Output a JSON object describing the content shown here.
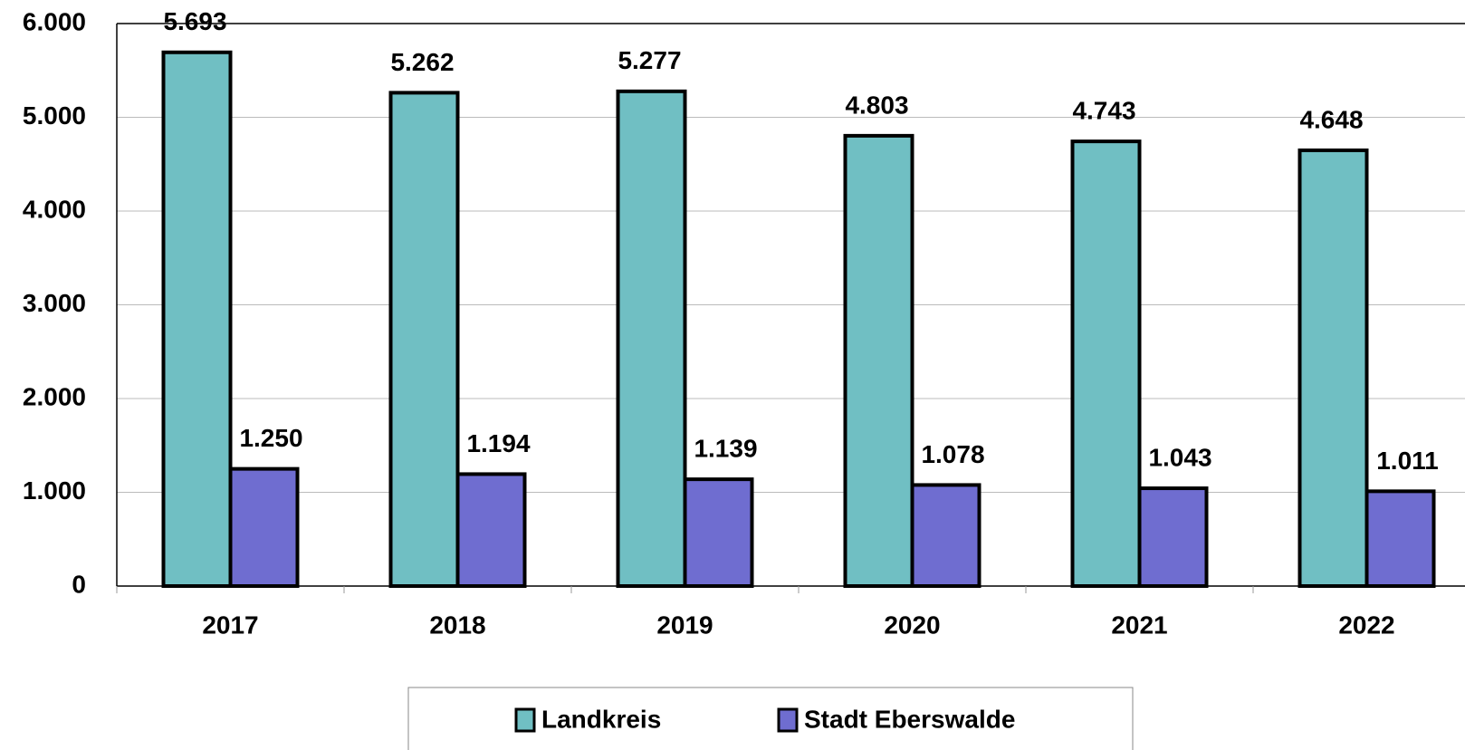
{
  "chart_data": {
    "type": "bar",
    "categories": [
      "2017",
      "2018",
      "2019",
      "2020",
      "2021",
      "2022"
    ],
    "series": [
      {
        "name": "Landkreis",
        "color": "#70bfc3",
        "values": [
          5693,
          5262,
          5277,
          4803,
          4743,
          4648
        ],
        "value_labels": [
          "5.693",
          "5.262",
          "5.277",
          "4.803",
          "4.743",
          "4.648"
        ]
      },
      {
        "name": "Stadt Eberswalde",
        "color": "#6f6dd0",
        "values": [
          1250,
          1194,
          1139,
          1078,
          1043,
          1011
        ],
        "value_labels": [
          "1.250",
          "1.194",
          "1.139",
          "1.078",
          "1.043",
          "1.011"
        ]
      }
    ],
    "ylim": [
      0,
      6000
    ],
    "yticks": [
      0,
      {
        "value": 1000,
        "label": "1.000"
      },
      {
        "value": 2000,
        "label": "2.000"
      },
      {
        "value": 3000,
        "label": "3.000"
      },
      {
        "value": 4000,
        "label": "4.000"
      },
      {
        "value": 5000,
        "label": "5.000"
      },
      {
        "value": 6000,
        "label": "6.000"
      }
    ],
    "grid": true,
    "legend": "bottom"
  }
}
